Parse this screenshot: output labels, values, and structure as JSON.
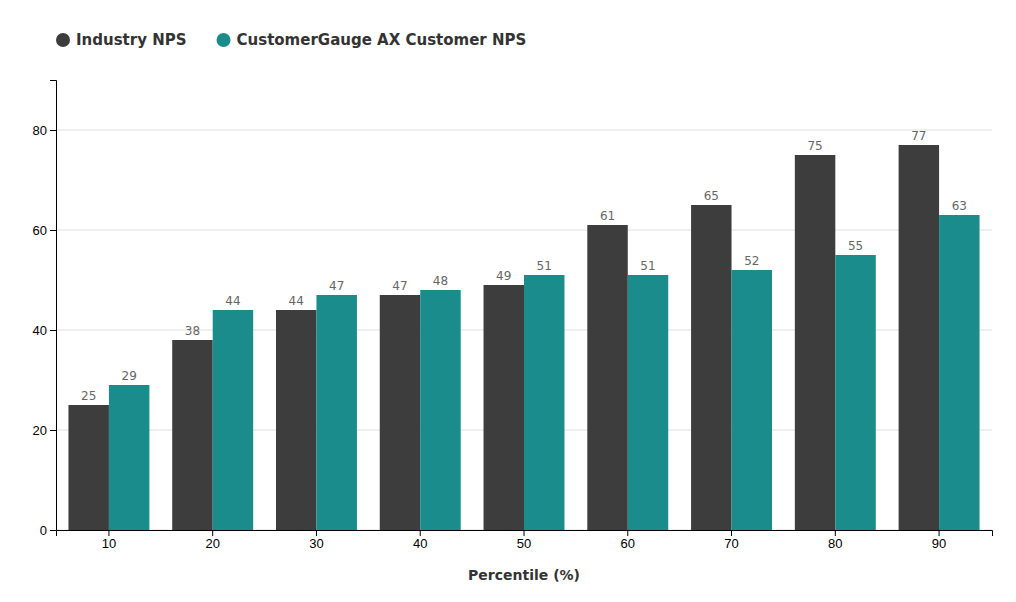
{
  "chart_data": {
    "type": "bar",
    "categories": [
      "10",
      "20",
      "30",
      "40",
      "50",
      "60",
      "70",
      "80",
      "90"
    ],
    "series": [
      {
        "name": "Industry NPS",
        "color": "#3d3d3d",
        "values": [
          25,
          38,
          44,
          47,
          49,
          61,
          65,
          75,
          77
        ]
      },
      {
        "name": "CustomerGauge AX Customer NPS",
        "color": "#1a8c8c",
        "values": [
          29,
          44,
          47,
          48,
          51,
          51,
          52,
          55,
          63
        ]
      }
    ],
    "x_label": "Percentile (%)",
    "ylim": [
      0,
      90
    ],
    "yticks": [
      0,
      20,
      40,
      60,
      80
    ],
    "grid": true,
    "legend": "upper left",
    "data_labels": true
  }
}
